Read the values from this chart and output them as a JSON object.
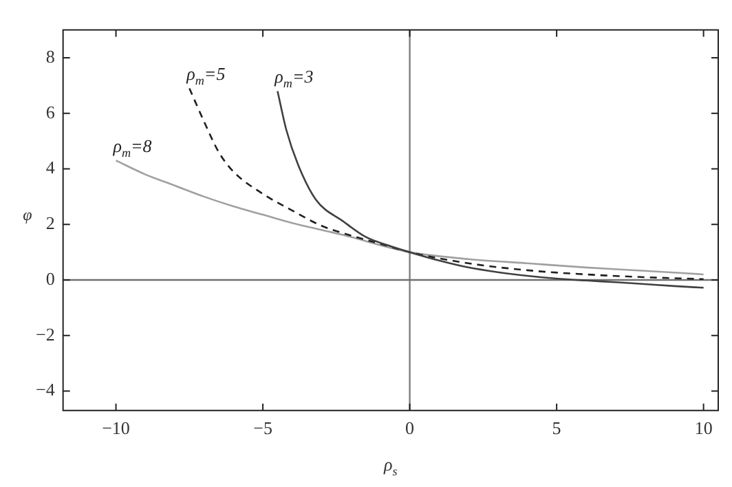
{
  "chart_data": {
    "type": "line",
    "xlabel": "ρ$_{s}$",
    "ylabel": "φ",
    "xlim": [
      -11.8,
      10.5
    ],
    "ylim": [
      -4.7,
      9
    ],
    "xticks": [
      -10,
      -5,
      0,
      5,
      10
    ],
    "yticks": [
      -4,
      -2,
      0,
      2,
      4,
      6,
      8
    ],
    "grid": false,
    "legend": false,
    "ref_lines": [
      {
        "axis": "x",
        "value": 0,
        "color": "#808080"
      },
      {
        "axis": "y",
        "value": 0,
        "color": "#707070"
      }
    ],
    "series": [
      {
        "name": "ρ$_{m}$=3",
        "color": "#404040",
        "line_style": "solid",
        "x": [
          -4.5,
          -4.2,
          -3.8,
          -3.2,
          -2.25,
          -1.5,
          -0.75,
          0,
          1,
          2,
          3,
          4,
          5,
          6,
          7,
          8,
          9,
          10
        ],
        "values": [
          6.8,
          5.4,
          4.15,
          2.9,
          2.1,
          1.55,
          1.25,
          1,
          0.7,
          0.45,
          0.28,
          0.15,
          0.05,
          -0.02,
          -0.08,
          -0.15,
          -0.22,
          -0.28
        ]
      },
      {
        "name": "ρ$_{m}$=5",
        "color": "#202020",
        "line_style": "dashed",
        "x": [
          -7.5,
          -7,
          -6.5,
          -6,
          -5,
          -4,
          -3,
          -2,
          -1,
          0,
          2,
          4,
          6,
          8,
          10
        ],
        "values": [
          6.9,
          5.7,
          4.6,
          3.9,
          3.1,
          2.5,
          1.95,
          1.6,
          1.3,
          1,
          0.6,
          0.35,
          0.2,
          0.1,
          0.03
        ]
      },
      {
        "name": "ρ$_{m}$=8",
        "color": "#a0a0a0",
        "line_style": "solid",
        "x": [
          -10,
          -9,
          -8,
          -7,
          -6,
          -5,
          -4,
          -3,
          -2,
          -1,
          0,
          2,
          4,
          6,
          8,
          10
        ],
        "values": [
          4.3,
          3.8,
          3.4,
          3.0,
          2.65,
          2.35,
          2.05,
          1.8,
          1.55,
          1.25,
          1,
          0.75,
          0.6,
          0.45,
          0.33,
          0.2
        ]
      }
    ]
  }
}
